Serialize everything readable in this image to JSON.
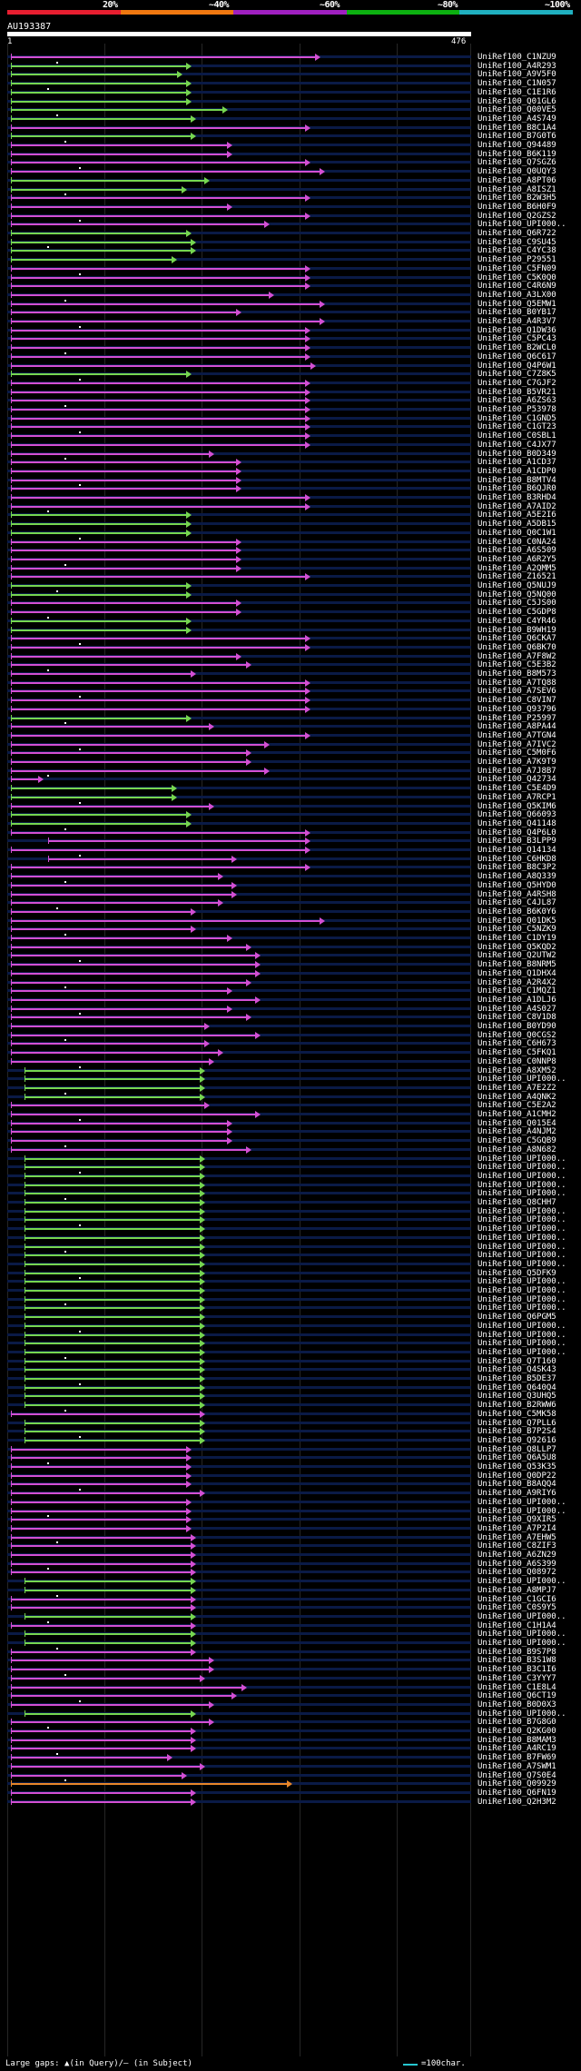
{
  "query": {
    "name": "AU193387",
    "start": "1",
    "end": "476"
  },
  "identity_scale": {
    "labels": [
      "20%",
      "~40%",
      "~60%",
      "~80%",
      "~100%"
    ],
    "colors": [
      "#e81e30",
      "#f07810",
      "#a020c0",
      "#0cb010",
      "#20b0c0"
    ]
  },
  "legend": {
    "gaps_text": "Large gaps: ▲(in Query)/— (in Subject)",
    "scale_text": "=100char.",
    "scale_color": "#26c6d0"
  },
  "color_classes": {
    "m": "#d34fd3",
    "g": "#76d650",
    "o": "#e8862a"
  },
  "hits": [
    {
      "label": "UniRef100_C1NZU9",
      "c": "m",
      "s": 0.0,
      "e": 0.66
    },
    {
      "label": "UniRef100_A4R293",
      "c": "g",
      "s": 0.0,
      "e": 0.38
    },
    {
      "label": "UniRef100_A9V5F0",
      "c": "g",
      "s": 0.0,
      "e": 0.36
    },
    {
      "label": "UniRef100_C1N057",
      "c": "g",
      "s": 0.0,
      "e": 0.38
    },
    {
      "label": "UniRef100_C1E1R6",
      "c": "g",
      "s": 0.0,
      "e": 0.38
    },
    {
      "label": "UniRef100_Q01GL6",
      "c": "g",
      "s": 0.0,
      "e": 0.38
    },
    {
      "label": "UniRef100_Q00VE5",
      "c": "g",
      "s": 0.0,
      "e": 0.46
    },
    {
      "label": "UniRef100_A4S749",
      "c": "g",
      "s": 0.0,
      "e": 0.39
    },
    {
      "label": "UniRef100_B8C1A4",
      "c": "m",
      "s": 0.0,
      "e": 0.64
    },
    {
      "label": "UniRef100_B7G0T6",
      "c": "g",
      "s": 0.0,
      "e": 0.39
    },
    {
      "label": "UniRef100_Q94489",
      "c": "m",
      "s": 0.0,
      "e": 0.47
    },
    {
      "label": "UniRef100_B6K119",
      "c": "m",
      "s": 0.0,
      "e": 0.47
    },
    {
      "label": "UniRef100_Q7SGZ6",
      "c": "m",
      "s": 0.0,
      "e": 0.64
    },
    {
      "label": "UniRef100_Q0UQY3",
      "c": "m",
      "s": 0.0,
      "e": 0.67
    },
    {
      "label": "UniRef100_A8PT06",
      "c": "g",
      "s": 0.0,
      "e": 0.42
    },
    {
      "label": "UniRef100_A8ISZ1",
      "c": "g",
      "s": 0.0,
      "e": 0.37
    },
    {
      "label": "UniRef100_B2W3H5",
      "c": "m",
      "s": 0.0,
      "e": 0.64
    },
    {
      "label": "UniRef100_B6H0F9",
      "c": "m",
      "s": 0.0,
      "e": 0.47
    },
    {
      "label": "UniRef100_Q2GZS2",
      "c": "m",
      "s": 0.0,
      "e": 0.64
    },
    {
      "label": "UniRef100_UPI000..",
      "c": "m",
      "s": 0.0,
      "e": 0.55
    },
    {
      "label": "UniRef100_Q6R722",
      "c": "g",
      "s": 0.0,
      "e": 0.38
    },
    {
      "label": "UniRef100_C9SU45",
      "c": "g",
      "s": 0.0,
      "e": 0.39
    },
    {
      "label": "UniRef100_C4YC38",
      "c": "g",
      "s": 0.0,
      "e": 0.39
    },
    {
      "label": "UniRef100_P29551",
      "c": "g",
      "s": 0.0,
      "e": 0.35
    },
    {
      "label": "UniRef100_C5FN09",
      "c": "m",
      "s": 0.0,
      "e": 0.64
    },
    {
      "label": "UniRef100_C5K0Q0",
      "c": "m",
      "s": 0.0,
      "e": 0.64
    },
    {
      "label": "UniRef100_C4R6N9",
      "c": "m",
      "s": 0.0,
      "e": 0.64
    },
    {
      "label": "UniRef100_A3LX00",
      "c": "m",
      "s": 0.0,
      "e": 0.56
    },
    {
      "label": "UniRef100_Q5EMW1",
      "c": "m",
      "s": 0.0,
      "e": 0.67
    },
    {
      "label": "UniRef100_B0YB17",
      "c": "m",
      "s": 0.0,
      "e": 0.49
    },
    {
      "label": "UniRef100_A4R3V7",
      "c": "m",
      "s": 0.0,
      "e": 0.67
    },
    {
      "label": "UniRef100_Q1DW36",
      "c": "m",
      "s": 0.0,
      "e": 0.64
    },
    {
      "label": "UniRef100_C5PC43",
      "c": "m",
      "s": 0.0,
      "e": 0.64
    },
    {
      "label": "UniRef100_B2WCL0",
      "c": "m",
      "s": 0.0,
      "e": 0.64
    },
    {
      "label": "UniRef100_Q6C617",
      "c": "m",
      "s": 0.0,
      "e": 0.64
    },
    {
      "label": "UniRef100_Q4P6W1",
      "c": "m",
      "s": 0.0,
      "e": 0.65
    },
    {
      "label": "UniRef100_C7Z8K5",
      "c": "g",
      "s": 0.0,
      "e": 0.38
    },
    {
      "label": "UniRef100_C7GJF2",
      "c": "m",
      "s": 0.0,
      "e": 0.64
    },
    {
      "label": "UniRef100_B5VR21",
      "c": "m",
      "s": 0.0,
      "e": 0.64
    },
    {
      "label": "UniRef100_A6ZS63",
      "c": "m",
      "s": 0.0,
      "e": 0.64
    },
    {
      "label": "UniRef100_P53978",
      "c": "m",
      "s": 0.0,
      "e": 0.64
    },
    {
      "label": "UniRef100_C1GND5",
      "c": "m",
      "s": 0.0,
      "e": 0.64
    },
    {
      "label": "UniRef100_C1GT23",
      "c": "m",
      "s": 0.0,
      "e": 0.64
    },
    {
      "label": "UniRef100_C0SBL1",
      "c": "m",
      "s": 0.0,
      "e": 0.64
    },
    {
      "label": "UniRef100_C4JX77",
      "c": "m",
      "s": 0.0,
      "e": 0.64
    },
    {
      "label": "UniRef100_B0D349",
      "c": "m",
      "s": 0.0,
      "e": 0.43
    },
    {
      "label": "UniRef100_A1CD37",
      "c": "m",
      "s": 0.0,
      "e": 0.49
    },
    {
      "label": "UniRef100_A1CDP0",
      "c": "m",
      "s": 0.0,
      "e": 0.49
    },
    {
      "label": "UniRef100_B8MTV4",
      "c": "m",
      "s": 0.0,
      "e": 0.49
    },
    {
      "label": "UniRef100_B6QJR0",
      "c": "m",
      "s": 0.0,
      "e": 0.49
    },
    {
      "label": "UniRef100_B3RHD4",
      "c": "m",
      "s": 0.0,
      "e": 0.64
    },
    {
      "label": "UniRef100_A7AID2",
      "c": "m",
      "s": 0.0,
      "e": 0.64
    },
    {
      "label": "UniRef100_A5E2I6",
      "c": "g",
      "s": 0.0,
      "e": 0.38
    },
    {
      "label": "UniRef100_A5DB15",
      "c": "g",
      "s": 0.0,
      "e": 0.38
    },
    {
      "label": "UniRef100_Q0C1W1",
      "c": "g",
      "s": 0.0,
      "e": 0.38
    },
    {
      "label": "UniRef100_C0NA24",
      "c": "m",
      "s": 0.0,
      "e": 0.49
    },
    {
      "label": "UniRef100_A6S509",
      "c": "m",
      "s": 0.0,
      "e": 0.49
    },
    {
      "label": "UniRef100_A6R2Y5",
      "c": "m",
      "s": 0.0,
      "e": 0.49
    },
    {
      "label": "UniRef100_A2QMM5",
      "c": "m",
      "s": 0.0,
      "e": 0.49
    },
    {
      "label": "UniRef100_Z16521",
      "c": "m",
      "s": 0.0,
      "e": 0.64
    },
    {
      "label": "UniRef100_Q5NUJ9",
      "c": "g",
      "s": 0.0,
      "e": 0.38
    },
    {
      "label": "UniRef100_Q5NQ00",
      "c": "g",
      "s": 0.0,
      "e": 0.38
    },
    {
      "label": "UniRef100_C5JS00",
      "c": "m",
      "s": 0.0,
      "e": 0.49
    },
    {
      "label": "UniRef100_C5GDP8",
      "c": "m",
      "s": 0.0,
      "e": 0.49
    },
    {
      "label": "UniRef100_C4YR46",
      "c": "g",
      "s": 0.0,
      "e": 0.38
    },
    {
      "label": "UniRef100_B9WH19",
      "c": "g",
      "s": 0.0,
      "e": 0.38
    },
    {
      "label": "UniRef100_Q6CKA7",
      "c": "m",
      "s": 0.0,
      "e": 0.64
    },
    {
      "label": "UniRef100_Q6BK70",
      "c": "m",
      "s": 0.0,
      "e": 0.64
    },
    {
      "label": "UniRef100_A7F8W2",
      "c": "m",
      "s": 0.0,
      "e": 0.49
    },
    {
      "label": "UniRef100_C5E3B2",
      "c": "m",
      "s": 0.0,
      "e": 0.51
    },
    {
      "label": "UniRef100_B8M573",
      "c": "m",
      "s": 0.0,
      "e": 0.39
    },
    {
      "label": "UniRef100_A7TQ88",
      "c": "m",
      "s": 0.0,
      "e": 0.64
    },
    {
      "label": "UniRef100_A7SEV6",
      "c": "m",
      "s": 0.0,
      "e": 0.64
    },
    {
      "label": "UniRef100_C8VIN7",
      "c": "m",
      "s": 0.0,
      "e": 0.64
    },
    {
      "label": "UniRef100_Q93796",
      "c": "m",
      "s": 0.0,
      "e": 0.64
    },
    {
      "label": "UniRef100_P25997",
      "c": "g",
      "s": 0.0,
      "e": 0.38
    },
    {
      "label": "UniRef100_A8PA44",
      "c": "m",
      "s": 0.0,
      "e": 0.43
    },
    {
      "label": "UniRef100_A7TGN4",
      "c": "m",
      "s": 0.0,
      "e": 0.64
    },
    {
      "label": "UniRef100_A7IVC2",
      "c": "m",
      "s": 0.0,
      "e": 0.55
    },
    {
      "label": "UniRef100_C5M0F6",
      "c": "m",
      "s": 0.0,
      "e": 0.51
    },
    {
      "label": "UniRef100_A7K9T9",
      "c": "m",
      "s": 0.0,
      "e": 0.51
    },
    {
      "label": "UniRef100_A7J8B7",
      "c": "m",
      "s": 0.0,
      "e": 0.55
    },
    {
      "label": "UniRef100_Q42734",
      "c": "m",
      "s": 0.0,
      "e": 0.06
    },
    {
      "label": "UniRef100_C5E4D9",
      "c": "g",
      "s": 0.0,
      "e": 0.35
    },
    {
      "label": "UniRef100_A7RCP1",
      "c": "g",
      "s": 0.0,
      "e": 0.35
    },
    {
      "label": "UniRef100_Q5KIM6",
      "c": "m",
      "s": 0.0,
      "e": 0.43
    },
    {
      "label": "UniRef100_Q66093",
      "c": "g",
      "s": 0.0,
      "e": 0.38
    },
    {
      "label": "UniRef100_Q41148",
      "c": "g",
      "s": 0.0,
      "e": 0.38
    },
    {
      "label": "UniRef100_Q4P6L0",
      "c": "m",
      "s": 0.0,
      "e": 0.64
    },
    {
      "label": "UniRef100_B3LPP9",
      "c": "m",
      "s": 0.08,
      "e": 0.64
    },
    {
      "label": "UniRef100_Q14134",
      "c": "m",
      "s": 0.0,
      "e": 0.64
    },
    {
      "label": "UniRef100_C6HKD8",
      "c": "m",
      "s": 0.08,
      "e": 0.48
    },
    {
      "label": "UniRef100_B8C3P2",
      "c": "m",
      "s": 0.0,
      "e": 0.64
    },
    {
      "label": "UniRef100_A8Q339",
      "c": "m",
      "s": 0.0,
      "e": 0.45
    },
    {
      "label": "UniRef100_Q5HYD0",
      "c": "m",
      "s": 0.0,
      "e": 0.48
    },
    {
      "label": "UniRef100_A4RSH8",
      "c": "m",
      "s": 0.0,
      "e": 0.48
    },
    {
      "label": "UniRef100_C4JL87",
      "c": "m",
      "s": 0.0,
      "e": 0.45
    },
    {
      "label": "UniRef100_B6K0Y6",
      "c": "m",
      "s": 0.0,
      "e": 0.39
    },
    {
      "label": "UniRef100_Q01DK5",
      "c": "m",
      "s": 0.0,
      "e": 0.67
    },
    {
      "label": "UniRef100_C5NZK9",
      "c": "m",
      "s": 0.0,
      "e": 0.39
    },
    {
      "label": "UniRef100_C1DY19",
      "c": "m",
      "s": 0.0,
      "e": 0.47
    },
    {
      "label": "UniRef100_Q5KQD2",
      "c": "m",
      "s": 0.0,
      "e": 0.51
    },
    {
      "label": "UniRef100_Q2UTW2",
      "c": "m",
      "s": 0.0,
      "e": 0.53
    },
    {
      "label": "UniRef100_B8NRM5",
      "c": "m",
      "s": 0.0,
      "e": 0.53
    },
    {
      "label": "UniRef100_Q1DHX4",
      "c": "m",
      "s": 0.0,
      "e": 0.53
    },
    {
      "label": "UniRef100_A2R4X2",
      "c": "m",
      "s": 0.0,
      "e": 0.51
    },
    {
      "label": "UniRef100_C1MQZ1",
      "c": "m",
      "s": 0.0,
      "e": 0.47
    },
    {
      "label": "UniRef100_A1DLJ6",
      "c": "m",
      "s": 0.0,
      "e": 0.53
    },
    {
      "label": "UniRef100_A4S027",
      "c": "m",
      "s": 0.0,
      "e": 0.47
    },
    {
      "label": "UniRef100_C8V1D8",
      "c": "m",
      "s": 0.0,
      "e": 0.51
    },
    {
      "label": "UniRef100_B0YD90",
      "c": "m",
      "s": 0.0,
      "e": 0.42
    },
    {
      "label": "UniRef100_Q0CGS2",
      "c": "m",
      "s": 0.0,
      "e": 0.53
    },
    {
      "label": "UniRef100_C6H673",
      "c": "m",
      "s": 0.0,
      "e": 0.42
    },
    {
      "label": "UniRef100_C5FKQ1",
      "c": "m",
      "s": 0.0,
      "e": 0.45
    },
    {
      "label": "UniRef100_C0NNP8",
      "c": "m",
      "s": 0.0,
      "e": 0.43
    },
    {
      "label": "UniRef100_A8XM52",
      "c": "g",
      "s": 0.03,
      "e": 0.41
    },
    {
      "label": "UniRef100_UPI000..",
      "c": "g",
      "s": 0.03,
      "e": 0.41
    },
    {
      "label": "UniRef100_A7E2Z2",
      "c": "g",
      "s": 0.03,
      "e": 0.41
    },
    {
      "label": "UniRef100_A4QNK2",
      "c": "g",
      "s": 0.03,
      "e": 0.41
    },
    {
      "label": "UniRef100_C5E2A2",
      "c": "m",
      "s": 0.0,
      "e": 0.42
    },
    {
      "label": "UniRef100_A1CMH2",
      "c": "m",
      "s": 0.0,
      "e": 0.53
    },
    {
      "label": "UniRef100_Q015E4",
      "c": "m",
      "s": 0.0,
      "e": 0.47
    },
    {
      "label": "UniRef100_A4NJM2",
      "c": "m",
      "s": 0.0,
      "e": 0.47
    },
    {
      "label": "UniRef100_C5GQB9",
      "c": "m",
      "s": 0.0,
      "e": 0.47
    },
    {
      "label": "UniRef100_A8N682",
      "c": "m",
      "s": 0.0,
      "e": 0.51
    },
    {
      "label": "UniRef100_UPI000..",
      "c": "g",
      "s": 0.03,
      "e": 0.41
    },
    {
      "label": "UniRef100_UPI000..",
      "c": "g",
      "s": 0.03,
      "e": 0.41
    },
    {
      "label": "UniRef100_UPI000..",
      "c": "g",
      "s": 0.03,
      "e": 0.41
    },
    {
      "label": "UniRef100_UPI000..",
      "c": "g",
      "s": 0.03,
      "e": 0.41
    },
    {
      "label": "UniRef100_UPI000..",
      "c": "g",
      "s": 0.03,
      "e": 0.41
    },
    {
      "label": "UniRef100_Q8CHH7",
      "c": "g",
      "s": 0.03,
      "e": 0.41
    },
    {
      "label": "UniRef100_UPI000..",
      "c": "g",
      "s": 0.03,
      "e": 0.41
    },
    {
      "label": "UniRef100_UPI000..",
      "c": "g",
      "s": 0.03,
      "e": 0.41
    },
    {
      "label": "UniRef100_UPI000..",
      "c": "g",
      "s": 0.03,
      "e": 0.41
    },
    {
      "label": "UniRef100_UPI000..",
      "c": "g",
      "s": 0.03,
      "e": 0.41
    },
    {
      "label": "UniRef100_UPI000..",
      "c": "g",
      "s": 0.03,
      "e": 0.41
    },
    {
      "label": "UniRef100_UPI000..",
      "c": "g",
      "s": 0.03,
      "e": 0.41
    },
    {
      "label": "UniRef100_UPI000..",
      "c": "g",
      "s": 0.03,
      "e": 0.41
    },
    {
      "label": "UniRef100_Q5DFK9",
      "c": "g",
      "s": 0.03,
      "e": 0.41
    },
    {
      "label": "UniRef100_UPI000..",
      "c": "g",
      "s": 0.03,
      "e": 0.41
    },
    {
      "label": "UniRef100_UPI000..",
      "c": "g",
      "s": 0.03,
      "e": 0.41
    },
    {
      "label": "UniRef100_UPI000..",
      "c": "g",
      "s": 0.03,
      "e": 0.41
    },
    {
      "label": "UniRef100_UPI000..",
      "c": "g",
      "s": 0.03,
      "e": 0.41
    },
    {
      "label": "UniRef100_Q6PGM5",
      "c": "g",
      "s": 0.03,
      "e": 0.41
    },
    {
      "label": "UniRef100_UPI000..",
      "c": "g",
      "s": 0.03,
      "e": 0.41
    },
    {
      "label": "UniRef100_UPI000..",
      "c": "g",
      "s": 0.03,
      "e": 0.41
    },
    {
      "label": "UniRef100_UPI000..",
      "c": "g",
      "s": 0.03,
      "e": 0.41
    },
    {
      "label": "UniRef100_UPI000..",
      "c": "g",
      "s": 0.03,
      "e": 0.41
    },
    {
      "label": "UniRef100_Q7T160",
      "c": "g",
      "s": 0.03,
      "e": 0.41
    },
    {
      "label": "UniRef100_Q4SK43",
      "c": "g",
      "s": 0.03,
      "e": 0.41
    },
    {
      "label": "UniRef100_B5DE37",
      "c": "g",
      "s": 0.03,
      "e": 0.41
    },
    {
      "label": "UniRef100_Q640Q4",
      "c": "g",
      "s": 0.03,
      "e": 0.41
    },
    {
      "label": "UniRef100_Q3UHQ5",
      "c": "g",
      "s": 0.03,
      "e": 0.41
    },
    {
      "label": "UniRef100_B2RWW6",
      "c": "g",
      "s": 0.03,
      "e": 0.41
    },
    {
      "label": "UniRef100_C5MK58",
      "c": "m",
      "s": 0.0,
      "e": 0.41
    },
    {
      "label": "UniRef100_Q7PLL6",
      "c": "g",
      "s": 0.03,
      "e": 0.41
    },
    {
      "label": "UniRef100_B7P2S4",
      "c": "g",
      "s": 0.03,
      "e": 0.41
    },
    {
      "label": "UniRef100_Q92616",
      "c": "g",
      "s": 0.03,
      "e": 0.41
    },
    {
      "label": "UniRef100_Q8LLP7",
      "c": "m",
      "s": 0.0,
      "e": 0.38
    },
    {
      "label": "UniRef100_Q6A5U8",
      "c": "m",
      "s": 0.0,
      "e": 0.38
    },
    {
      "label": "UniRef100_Q53K35",
      "c": "m",
      "s": 0.0,
      "e": 0.38
    },
    {
      "label": "UniRef100_Q0DP22",
      "c": "m",
      "s": 0.0,
      "e": 0.38
    },
    {
      "label": "UniRef100_B8AQQ4",
      "c": "m",
      "s": 0.0,
      "e": 0.38
    },
    {
      "label": "UniRef100_A9RIY6",
      "c": "m",
      "s": 0.0,
      "e": 0.41
    },
    {
      "label": "UniRef100_UPI000..",
      "c": "m",
      "s": 0.0,
      "e": 0.38
    },
    {
      "label": "UniRef100_UPI000..",
      "c": "m",
      "s": 0.0,
      "e": 0.38
    },
    {
      "label": "UniRef100_Q9XIR5",
      "c": "m",
      "s": 0.0,
      "e": 0.38
    },
    {
      "label": "UniRef100_A7P2I4",
      "c": "m",
      "s": 0.0,
      "e": 0.38
    },
    {
      "label": "UniRef100_A7EHW5",
      "c": "m",
      "s": 0.0,
      "e": 0.39
    },
    {
      "label": "UniRef100_C8ZIF3",
      "c": "m",
      "s": 0.0,
      "e": 0.39
    },
    {
      "label": "UniRef100_A6ZN29",
      "c": "m",
      "s": 0.0,
      "e": 0.39
    },
    {
      "label": "UniRef100_A6S399",
      "c": "m",
      "s": 0.0,
      "e": 0.39
    },
    {
      "label": "UniRef100_Q08972",
      "c": "m",
      "s": 0.0,
      "e": 0.39
    },
    {
      "label": "UniRef100_UPI000..",
      "c": "g",
      "s": 0.03,
      "e": 0.39
    },
    {
      "label": "UniRef100_A8MPJ7",
      "c": "g",
      "s": 0.03,
      "e": 0.39
    },
    {
      "label": "UniRef100_C1GCI6",
      "c": "m",
      "s": 0.0,
      "e": 0.39
    },
    {
      "label": "UniRef100_C0S9Y5",
      "c": "m",
      "s": 0.0,
      "e": 0.39
    },
    {
      "label": "UniRef100_UPI000..",
      "c": "g",
      "s": 0.03,
      "e": 0.39
    },
    {
      "label": "UniRef100_C1H1A4",
      "c": "m",
      "s": 0.0,
      "e": 0.39
    },
    {
      "label": "UniRef100_UPI000..",
      "c": "g",
      "s": 0.03,
      "e": 0.39
    },
    {
      "label": "UniRef100_UPI000..",
      "c": "g",
      "s": 0.03,
      "e": 0.39
    },
    {
      "label": "UniRef100_B9S7P8",
      "c": "m",
      "s": 0.0,
      "e": 0.39
    },
    {
      "label": "UniRef100_B3S1W8",
      "c": "m",
      "s": 0.0,
      "e": 0.43
    },
    {
      "label": "UniRef100_B3C1I6",
      "c": "m",
      "s": 0.0,
      "e": 0.43
    },
    {
      "label": "UniRef100_C3YYY7",
      "c": "m",
      "s": 0.0,
      "e": 0.41
    },
    {
      "label": "UniRef100_C1E8L4",
      "c": "m",
      "s": 0.0,
      "e": 0.5
    },
    {
      "label": "UniRef100_Q6CT19",
      "c": "m",
      "s": 0.0,
      "e": 0.48
    },
    {
      "label": "UniRef100_B0D0X3",
      "c": "m",
      "s": 0.0,
      "e": 0.43
    },
    {
      "label": "UniRef100_UPI000..",
      "c": "g",
      "s": 0.03,
      "e": 0.39
    },
    {
      "label": "UniRef100_B7G8G0",
      "c": "m",
      "s": 0.0,
      "e": 0.43
    },
    {
      "label": "UniRef100_Q2KG00",
      "c": "m",
      "s": 0.0,
      "e": 0.39
    },
    {
      "label": "UniRef100_B8MAM3",
      "c": "m",
      "s": 0.0,
      "e": 0.39
    },
    {
      "label": "UniRef100_A4RC19",
      "c": "m",
      "s": 0.0,
      "e": 0.39
    },
    {
      "label": "UniRef100_B7FW69",
      "c": "m",
      "s": 0.0,
      "e": 0.34
    },
    {
      "label": "UniRef100_A7SWM1",
      "c": "m",
      "s": 0.0,
      "e": 0.41
    },
    {
      "label": "UniRef100_Q7S0E4",
      "c": "m",
      "s": 0.0,
      "e": 0.37
    },
    {
      "label": "UniRef100_Q09929",
      "c": "o",
      "s": 0.0,
      "e": 0.6
    },
    {
      "label": "UniRef100_Q6FN19",
      "c": "m",
      "s": 0.0,
      "e": 0.39
    },
    {
      "label": "UniRef100_Q2H3M2",
      "c": "m",
      "s": 0.0,
      "e": 0.39
    }
  ]
}
